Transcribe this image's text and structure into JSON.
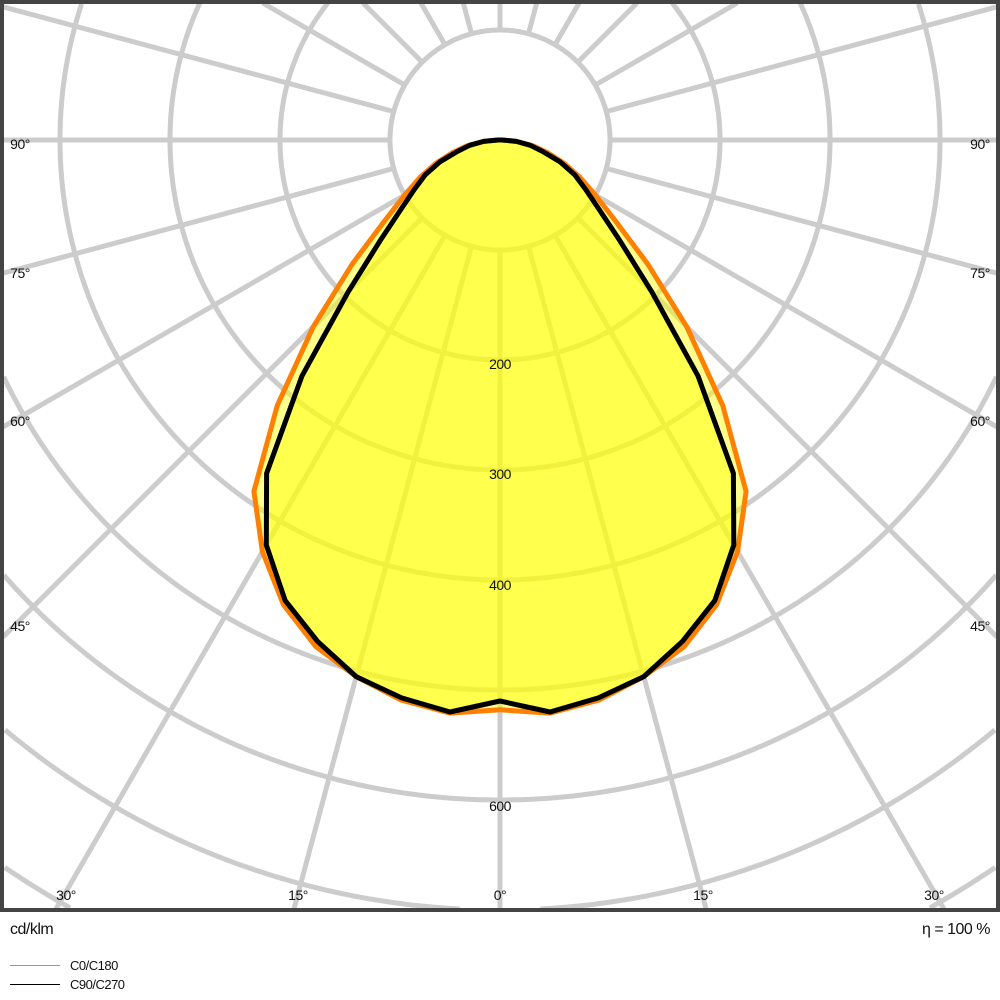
{
  "chart_data": {
    "type": "polar",
    "unit_label": "cd/klm",
    "efficiency_label": "η = 100 %",
    "radial_ticks": [
      100,
      200,
      300,
      400,
      500,
      600,
      700,
      800,
      900
    ],
    "radial_tick_labels": [
      "200",
      "300",
      "400",
      "600"
    ],
    "angle_step_deg": 15,
    "angle_labels": {
      "left": [
        "90°",
        "75°",
        "60°",
        "45°"
      ],
      "right": [
        "90°",
        "75°",
        "60°",
        "45°"
      ],
      "bottom": [
        "30°",
        "15°",
        "0°",
        "15°",
        "30°"
      ]
    },
    "angles_deg": [
      0,
      5,
      10,
      15,
      20,
      25,
      30,
      35,
      40,
      45,
      50,
      55,
      60,
      65,
      70,
      75,
      80,
      85,
      90
    ],
    "series": [
      {
        "name": "C0/C180",
        "color": "#ff8000",
        "values": [
          518,
          523,
          517,
          505,
          490,
          466,
          432,
          390,
          315,
          240,
          175,
          128,
          100,
          80,
          62,
          45,
          30,
          15,
          2
        ]
      },
      {
        "name": "C90/C270",
        "color": "#000000",
        "values": [
          510,
          522,
          515,
          505,
          485,
          462,
          425,
          370,
          280,
          195,
          142,
          110,
          90,
          75,
          58,
          40,
          28,
          15,
          2
        ]
      }
    ],
    "fill_color": "#ffff00",
    "grid_color": "#cccccc",
    "grid": true,
    "legend_placement": "bottom-left"
  }
}
